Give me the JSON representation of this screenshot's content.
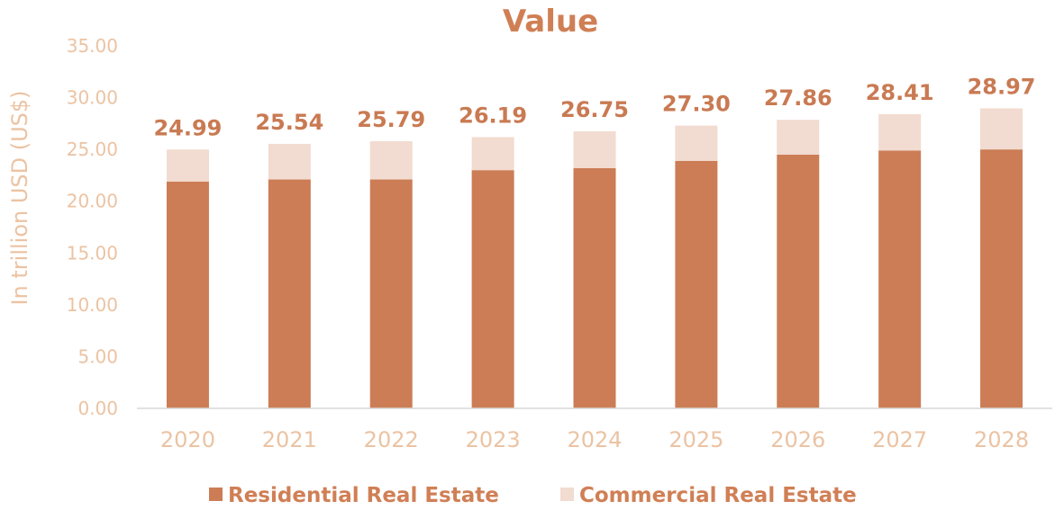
{
  "chart_data": {
    "type": "bar",
    "stacked": true,
    "title": "Value",
    "ylabel": "In trillion USD (US$)",
    "xlabel": "",
    "ylim": [
      0,
      35
    ],
    "yticks": [
      "0.00",
      "5.00",
      "10.00",
      "15.00",
      "20.00",
      "25.00",
      "30.00",
      "35.00"
    ],
    "categories": [
      "2020",
      "2021",
      "2022",
      "2023",
      "2024",
      "2025",
      "2026",
      "2027",
      "2028"
    ],
    "series": [
      {
        "name": "Residential Real Estate",
        "color": "#CC7D55",
        "values": [
          21.9,
          22.1,
          22.1,
          23.0,
          23.2,
          23.9,
          24.5,
          24.9,
          25.0
        ]
      },
      {
        "name": "Commercial Real Estate",
        "color": "#F2DBD0",
        "values": [
          3.09,
          3.44,
          3.69,
          3.19,
          3.55,
          3.4,
          3.36,
          3.51,
          3.97
        ]
      }
    ],
    "totals": [
      "24.99",
      "25.54",
      "25.79",
      "26.19",
      "26.75",
      "27.30",
      "27.86",
      "28.41",
      "28.97"
    ],
    "grid": false,
    "legend_position": "bottom"
  }
}
